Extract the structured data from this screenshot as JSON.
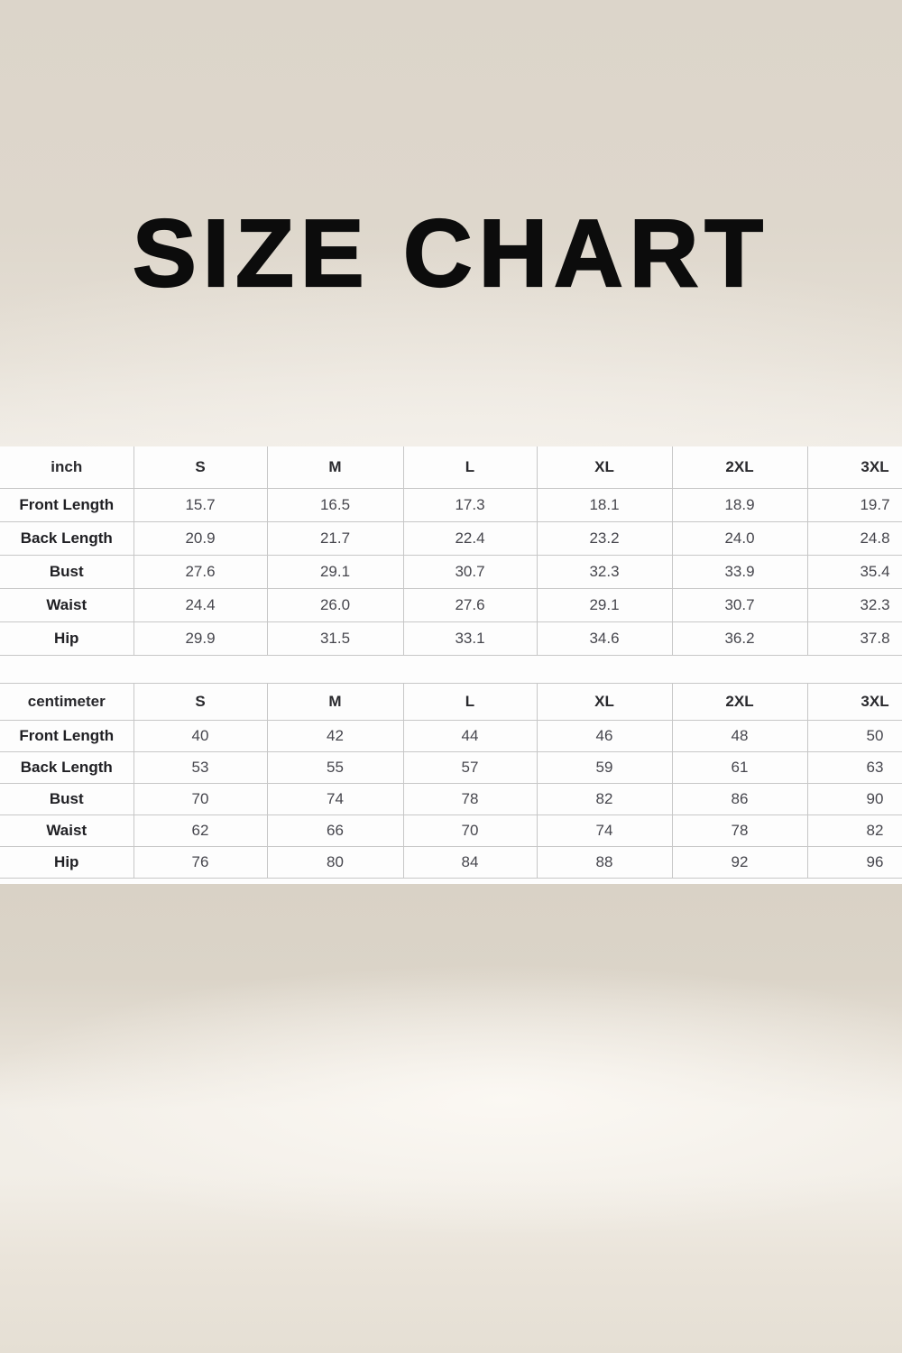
{
  "title": "SIZE CHART",
  "colors": {
    "backdrop_beige": "#ddd6cb",
    "band_white": "#fdfdfd",
    "grid_border": "#c7c7c7",
    "title_text": "#0c0c0c",
    "header_text": "#29292d",
    "value_text": "#46464d"
  },
  "tables": [
    {
      "unit_label": "inch",
      "sizes": [
        "S",
        "M",
        "L",
        "XL",
        "2XL",
        "3XL"
      ],
      "rows": [
        {
          "label": "Front Length",
          "values": [
            "15.7",
            "16.5",
            "17.3",
            "18.1",
            "18.9",
            "19.7"
          ]
        },
        {
          "label": "Back Length",
          "values": [
            "20.9",
            "21.7",
            "22.4",
            "23.2",
            "24.0",
            "24.8"
          ]
        },
        {
          "label": "Bust",
          "values": [
            "27.6",
            "29.1",
            "30.7",
            "32.3",
            "33.9",
            "35.4"
          ]
        },
        {
          "label": "Waist",
          "values": [
            "24.4",
            "26.0",
            "27.6",
            "29.1",
            "30.7",
            "32.3"
          ]
        },
        {
          "label": "Hip",
          "values": [
            "29.9",
            "31.5",
            "33.1",
            "34.6",
            "36.2",
            "37.8"
          ]
        }
      ]
    },
    {
      "unit_label": "centimeter",
      "sizes": [
        "S",
        "M",
        "L",
        "XL",
        "2XL",
        "3XL"
      ],
      "rows": [
        {
          "label": "Front Length",
          "values": [
            "40",
            "42",
            "44",
            "46",
            "48",
            "50"
          ]
        },
        {
          "label": "Back Length",
          "values": [
            "53",
            "55",
            "57",
            "59",
            "61",
            "63"
          ]
        },
        {
          "label": "Bust",
          "values": [
            "70",
            "74",
            "78",
            "82",
            "86",
            "90"
          ]
        },
        {
          "label": "Waist",
          "values": [
            "62",
            "66",
            "70",
            "74",
            "78",
            "82"
          ]
        },
        {
          "label": "Hip",
          "values": [
            "76",
            "80",
            "84",
            "88",
            "92",
            "96"
          ]
        }
      ]
    }
  ],
  "chart_data": [
    {
      "type": "table",
      "title": "SIZE CHART",
      "unit": "inch",
      "columns": [
        "inch",
        "S",
        "M",
        "L",
        "XL",
        "2XL",
        "3XL"
      ],
      "rows": [
        [
          "Front Length",
          15.7,
          16.5,
          17.3,
          18.1,
          18.9,
          19.7
        ],
        [
          "Back Length",
          20.9,
          21.7,
          22.4,
          23.2,
          24.0,
          24.8
        ],
        [
          "Bust",
          27.6,
          29.1,
          30.7,
          32.3,
          33.9,
          35.4
        ],
        [
          "Waist",
          24.4,
          26.0,
          27.6,
          29.1,
          30.7,
          32.3
        ],
        [
          "Hip",
          29.9,
          31.5,
          33.1,
          34.6,
          36.2,
          37.8
        ]
      ]
    },
    {
      "type": "table",
      "title": "SIZE CHART",
      "unit": "centimeter",
      "columns": [
        "centimeter",
        "S",
        "M",
        "L",
        "XL",
        "2XL",
        "3XL"
      ],
      "rows": [
        [
          "Front Length",
          40,
          42,
          44,
          46,
          48,
          50
        ],
        [
          "Back Length",
          53,
          55,
          57,
          59,
          61,
          63
        ],
        [
          "Bust",
          70,
          74,
          78,
          82,
          86,
          90
        ],
        [
          "Waist",
          62,
          66,
          70,
          74,
          78,
          82
        ],
        [
          "Hip",
          76,
          80,
          84,
          88,
          92,
          96
        ]
      ]
    }
  ]
}
